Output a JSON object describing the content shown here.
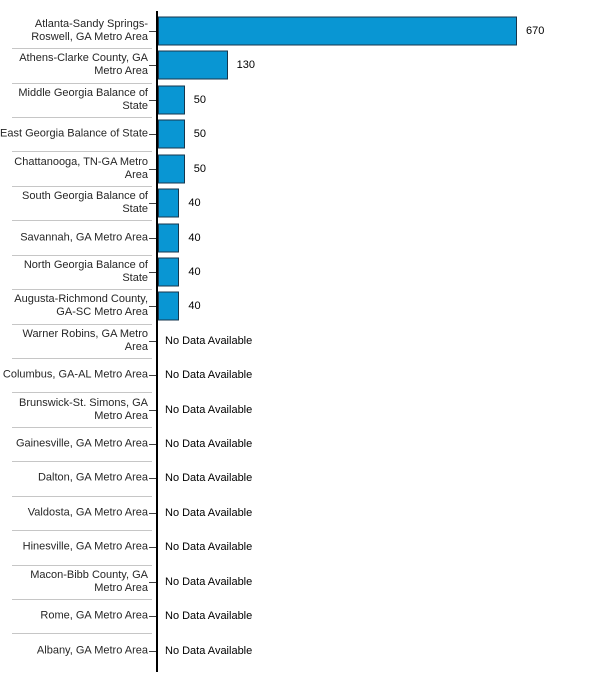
{
  "chart_data": {
    "type": "bar",
    "orientation": "horizontal",
    "title": "",
    "xlabel": "",
    "ylabel": "",
    "xlim": [
      0,
      700
    ],
    "grid": false,
    "legend": "none",
    "categories": [
      "Atlanta-Sandy Springs-Roswell, GA Metro Area",
      "Athens-Clarke County, GA Metro Area",
      "Middle Georgia Balance of State",
      "East Georgia Balance of State",
      "Chattanooga, TN-GA Metro Area",
      "South Georgia Balance of State",
      "Savannah, GA Metro Area",
      "North Georgia Balance of State",
      "Augusta-Richmond County, GA-SC Metro Area",
      "Warner Robins, GA Metro Area",
      "Columbus, GA-AL Metro Area",
      "Brunswick-St. Simons, GA Metro Area",
      "Gainesville, GA Metro Area",
      "Dalton, GA Metro Area",
      "Valdosta, GA Metro Area",
      "Hinesville, GA Metro Area",
      "Macon-Bibb County, GA Metro Area",
      "Rome, GA Metro Area",
      "Albany, GA Metro Area"
    ],
    "values": [
      670,
      130,
      50,
      50,
      50,
      40,
      40,
      40,
      40,
      null,
      null,
      null,
      null,
      null,
      null,
      null,
      null,
      null,
      null
    ],
    "no_data_label": "No Data Available",
    "colors": {
      "bar_fill": "#0996d3",
      "bar_border": "#16364c",
      "axis_line": "#000000",
      "tick": "#404040",
      "separator": "#c6c6c6",
      "label_text": "#262626",
      "value_text": "#000000"
    }
  }
}
